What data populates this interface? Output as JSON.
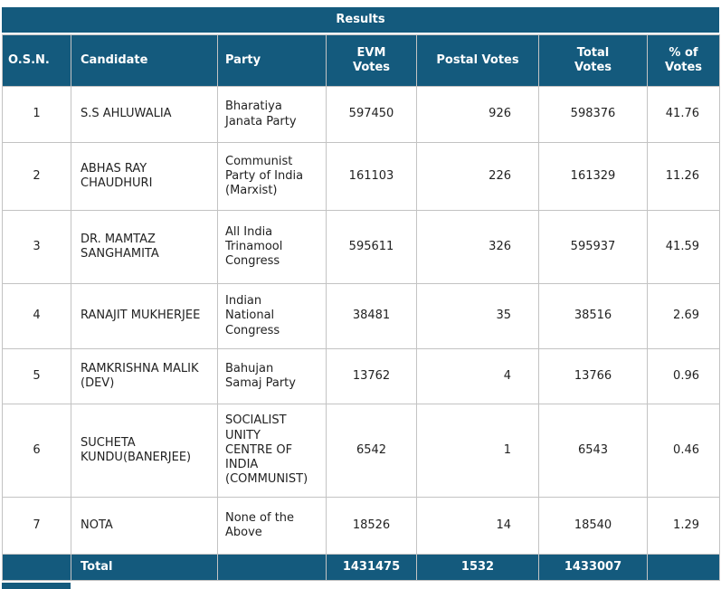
{
  "title": "Results",
  "colors": {
    "header_bg": "#145a7d",
    "header_text": "#ffffff",
    "border": "#c3c3c3",
    "body_text": "#222222"
  },
  "headers": {
    "osn": "O.S.N.",
    "candidate": "Candidate",
    "party": "Party",
    "evm": "EVM Votes",
    "postal": "Postal Votes",
    "total": "Total Votes",
    "pct": "% of Votes"
  },
  "rows": [
    {
      "osn": "1",
      "candidate": "S.S AHLUWALIA",
      "party": "Bharatiya Janata Party",
      "evm": "597450",
      "postal": "926",
      "total": "598376",
      "pct": "41.76"
    },
    {
      "osn": "2",
      "candidate": "ABHAS RAY CHAUDHURI",
      "party": "Communist Party of India (Marxist)",
      "evm": "161103",
      "postal": "226",
      "total": "161329",
      "pct": "11.26"
    },
    {
      "osn": "3",
      "candidate": "DR. MAMTAZ SANGHAMITA",
      "party": "All India Trinamool Congress",
      "evm": "595611",
      "postal": "326",
      "total": "595937",
      "pct": "41.59"
    },
    {
      "osn": "4",
      "candidate": "RANAJIT MUKHERJEE",
      "party": "Indian National Congress",
      "evm": "38481",
      "postal": "35",
      "total": "38516",
      "pct": "2.69"
    },
    {
      "osn": "5",
      "candidate": "RAMKRISHNA MALIK (DEV)",
      "party": "Bahujan Samaj Party",
      "evm": "13762",
      "postal": "4",
      "total": "13766",
      "pct": "0.96"
    },
    {
      "osn": "6",
      "candidate": "SUCHETA KUNDU(BANERJEE)",
      "party": "SOCIALIST UNITY CENTRE OF INDIA (COMMUNIST)",
      "evm": "6542",
      "postal": "1",
      "total": "6543",
      "pct": "0.46"
    },
    {
      "osn": "7",
      "candidate": "NOTA",
      "party": "None of the Above",
      "evm": "18526",
      "postal": "14",
      "total": "18540",
      "pct": "1.29"
    }
  ],
  "total_row": {
    "osn": "",
    "label": "Total",
    "party": "",
    "evm": "1431475",
    "postal": "1532",
    "total": "1433007",
    "pct": ""
  }
}
